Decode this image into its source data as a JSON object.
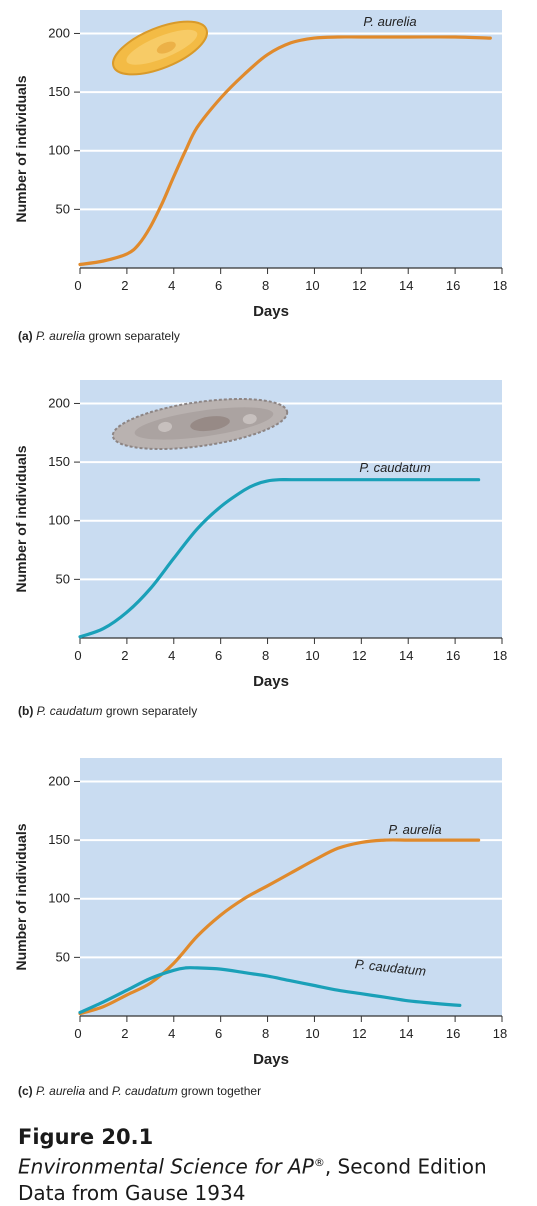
{
  "colors": {
    "plot_bg": "#c9dcf1",
    "gridline": "#ffffff",
    "aurelia": "#e08a2c",
    "caudatum": "#1aa0b8",
    "axis": "#333333"
  },
  "chart_data": [
    {
      "type": "line",
      "panel_id": "a",
      "caption_letter": "(a)",
      "caption_species": "P. aurelia",
      "caption_rest": " grown separately",
      "xlabel": "Days",
      "ylabel": "Number of individuals",
      "xlim": [
        0,
        18
      ],
      "ylim": [
        0,
        220
      ],
      "xticks": [
        0,
        2,
        4,
        6,
        8,
        10,
        12,
        14,
        16,
        18
      ],
      "yticks": [
        50,
        100,
        150,
        200
      ],
      "grid": true,
      "series": [
        {
          "name": "P. aurelia",
          "color_key": "aurelia",
          "x": [
            0,
            1,
            2,
            2.5,
            3,
            3.5,
            4,
            4.5,
            5,
            6,
            7,
            8,
            9,
            10,
            11,
            12,
            14,
            16,
            17.5
          ],
          "y": [
            3,
            6,
            12,
            20,
            35,
            55,
            78,
            100,
            120,
            145,
            165,
            182,
            192,
            196,
            197,
            197,
            197,
            197,
            196
          ]
        }
      ],
      "image_icon": "paramecium-aurelia-icon"
    },
    {
      "type": "line",
      "panel_id": "b",
      "caption_letter": "(b)",
      "caption_species": "P. caudatum",
      "caption_rest": " grown separately",
      "xlabel": "Days",
      "ylabel": "Number of individuals",
      "xlim": [
        0,
        18
      ],
      "ylim": [
        0,
        220
      ],
      "xticks": [
        0,
        2,
        4,
        6,
        8,
        10,
        12,
        14,
        16,
        18
      ],
      "yticks": [
        50,
        100,
        150,
        200
      ],
      "grid": true,
      "series": [
        {
          "name": "P. caudatum",
          "color_key": "caudatum",
          "x": [
            0,
            1,
            2,
            3,
            4,
            5,
            6,
            7,
            7.5,
            8,
            8.5,
            9,
            10,
            12,
            14,
            16,
            17
          ],
          "y": [
            1,
            8,
            22,
            42,
            68,
            93,
            112,
            126,
            131,
            134,
            135,
            135,
            135,
            135,
            135,
            135,
            135
          ]
        }
      ],
      "image_icon": "paramecium-caudatum-icon"
    },
    {
      "type": "line",
      "panel_id": "c",
      "caption_letter": "(c)",
      "caption_species": "P. aurelia",
      "caption_mid": " and ",
      "caption_species2": "P. caudatum",
      "caption_rest": " grown together",
      "xlabel": "Days",
      "ylabel": "Number of individuals",
      "xlim": [
        0,
        18
      ],
      "ylim": [
        0,
        220
      ],
      "xticks": [
        0,
        2,
        4,
        6,
        8,
        10,
        12,
        14,
        16,
        18
      ],
      "yticks": [
        50,
        100,
        150,
        200
      ],
      "grid": true,
      "series": [
        {
          "name": "P. aurelia",
          "color_key": "aurelia",
          "x": [
            0,
            1,
            2,
            3,
            4,
            5,
            6,
            7,
            8,
            9,
            10,
            11,
            12,
            13,
            14,
            15,
            16,
            17
          ],
          "y": [
            2,
            8,
            18,
            28,
            45,
            68,
            86,
            100,
            111,
            122,
            133,
            143,
            148,
            150,
            150,
            150,
            150,
            150
          ]
        },
        {
          "name": "P. caudatum",
          "color_key": "caudatum",
          "x": [
            0,
            1,
            2,
            3,
            4,
            4.5,
            5,
            6,
            7,
            8,
            9,
            10,
            11,
            12,
            13,
            14,
            15,
            16.2
          ],
          "y": [
            3,
            12,
            22,
            32,
            39,
            41,
            41,
            40,
            37,
            34,
            30,
            26,
            22,
            19,
            16,
            13,
            11,
            9
          ]
        }
      ]
    }
  ],
  "figure": {
    "number": "Figure 20.1",
    "book_title": "Environmental Science for AP",
    "book_sup": "®",
    "book_rest": ", Second Edition",
    "source": "Data from Gause 1934"
  }
}
